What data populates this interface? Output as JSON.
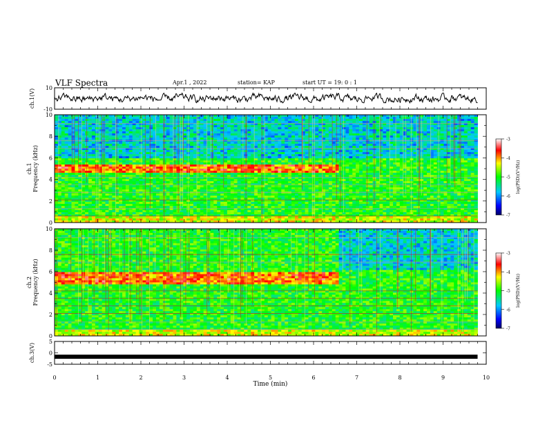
{
  "header": {
    "title": "VLF Spectra",
    "date": "Apr.1 , 2022",
    "station": "station= KAP",
    "start": "start UT = 19: 0 : 1"
  },
  "chart_data": [
    {
      "panel": "ch1-waveform",
      "type": "line",
      "ylabel": "ch.1(V)",
      "ylim": [
        -10,
        10
      ],
      "ytick_labels": [
        "10",
        "-10"
      ],
      "xlim": [
        0,
        10
      ],
      "series": [
        {
          "values_summary": "noisy waveform centred near 0 V, about -3 to +4 V",
          "baseline": 0
        }
      ]
    },
    {
      "panel": "ch1-spectrogram",
      "type": "heatmap",
      "ylabel": "ch.1\nFrequency (kHz)",
      "ylim": [
        0,
        10
      ],
      "ytick_labels": [
        "0",
        "2",
        "4",
        "6",
        "8",
        "10"
      ],
      "xlim": [
        0,
        10
      ],
      "data_end_min": 9.8,
      "colorbar": {
        "label": "log(PSD)(V²/Hz)",
        "range": [
          -7,
          -3
        ],
        "tick_labels": [
          "-3",
          "-4",
          "-5",
          "-6",
          "-7"
        ]
      },
      "features": {
        "background_level": -5.0,
        "high_band_kHz": [
          6,
          10
        ],
        "bright_band_kHz": [
          4.6,
          5.4
        ],
        "bright_band_end_min": 6.6
      }
    },
    {
      "panel": "ch2-spectrogram",
      "type": "heatmap",
      "ylabel": "ch.2\nFrequency (kHz)",
      "ylim": [
        0,
        10
      ],
      "ytick_labels": [
        "0",
        "2",
        "4",
        "6",
        "8",
        "10"
      ],
      "xlim": [
        0,
        10
      ],
      "data_end_min": 9.8,
      "colorbar": {
        "label": "log(PSD)(V²/Hz)",
        "range": [
          -7,
          -3
        ],
        "tick_labels": [
          "-3",
          "-4",
          "-5",
          "-6",
          "-7"
        ]
      },
      "features": {
        "background_level": -5.0,
        "bright_band_kHz": [
          4.8,
          6.0
        ],
        "bright_band_end_min": 6.6
      }
    },
    {
      "panel": "ch3-waveform",
      "type": "line",
      "ylabel": "ch.3(V)",
      "ylim": [
        -5,
        5
      ],
      "ytick_labels": [
        "5",
        "0",
        "-5"
      ],
      "xlim": [
        0,
        10
      ],
      "series": [
        {
          "values_summary": "thick flat trace near -1.7 V",
          "level": -1.7
        }
      ]
    }
  ],
  "xaxis": {
    "label": "Time (min)",
    "ticks": [
      0,
      1,
      2,
      3,
      4,
      5,
      6,
      7,
      8,
      9,
      10
    ]
  }
}
